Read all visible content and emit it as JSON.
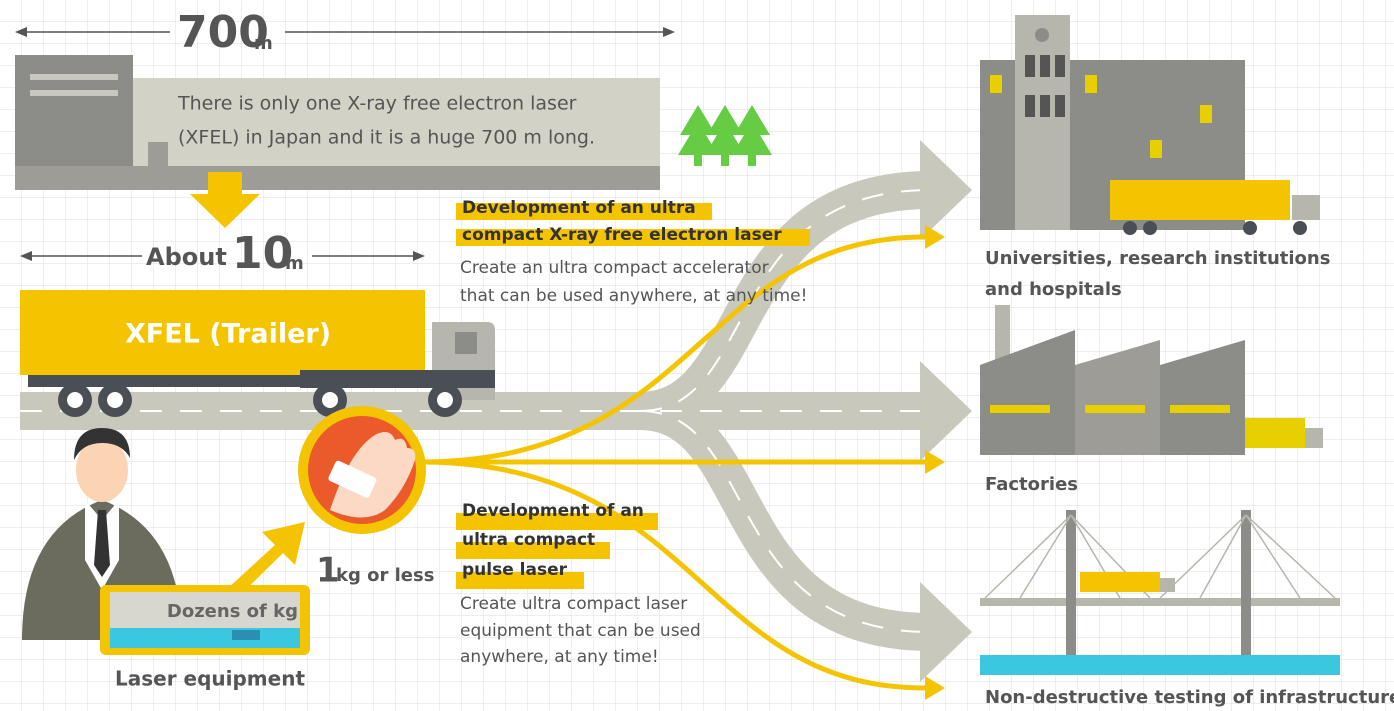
{
  "xfel": {
    "length_value": 700,
    "length_unit": "m",
    "description": [
      "There is only one X-ray free electron laser",
      "(XFEL) in Japan and it is a huge 700 m long."
    ]
  },
  "trailer": {
    "prefix": "About",
    "length_value": 10,
    "length_unit": "m",
    "label": "XFEL (Trailer)"
  },
  "development_xfel": {
    "heading": [
      "Development of an ultra",
      "compact X-ray free electron laser"
    ],
    "body": [
      "Create an ultra compact accelerator",
      "that can be used anywhere, at any time!"
    ]
  },
  "development_laser": {
    "heading": [
      "Development of an",
      "ultra compact",
      "pulse laser"
    ],
    "body": [
      "Create ultra compact laser",
      "equipment that can be used",
      "anywhere, at any time!"
    ]
  },
  "laser_equipment": {
    "weight_before": "Dozens of kg",
    "label": "Laser equipment",
    "weight_after_value": 1,
    "weight_after_unit": "kg or less"
  },
  "destinations": [
    {
      "label": [
        "Universities, research institutions",
        "and hospitals"
      ]
    },
    {
      "label": [
        "Factories"
      ]
    },
    {
      "label": [
        "Non-destructive testing of infrastructure"
      ]
    }
  ]
}
